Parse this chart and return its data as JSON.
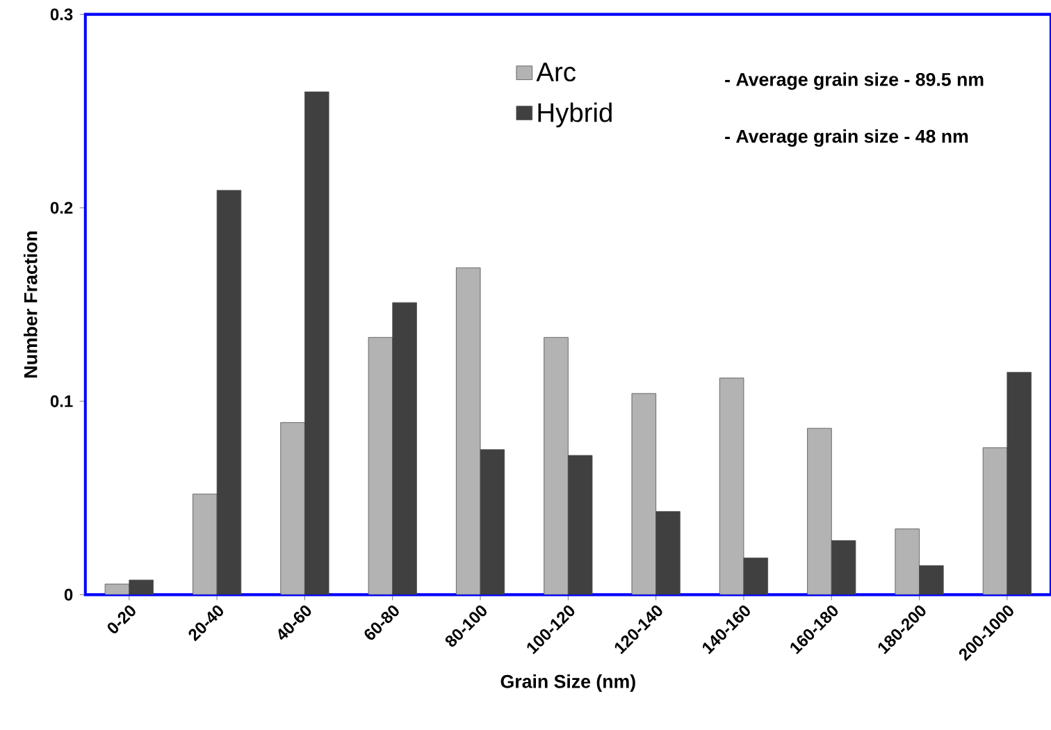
{
  "chart_data": {
    "type": "bar",
    "xlabel": "Grain Size (nm)",
    "ylabel": "Number Fraction",
    "categories": [
      "0-20",
      "20-40",
      "40-60",
      "60-80",
      "80-100",
      "100-120",
      "120-140",
      "140-160",
      "160-180",
      "180-200",
      "200-1000"
    ],
    "series": [
      {
        "name": "Arc",
        "color": "#b3b3b3",
        "values": [
          0.0055,
          0.052,
          0.089,
          0.133,
          0.169,
          0.133,
          0.104,
          0.112,
          0.086,
          0.034,
          0.076
        ]
      },
      {
        "name": "Hybrid",
        "color": "#404040",
        "values": [
          0.0076,
          0.209,
          0.26,
          0.151,
          0.075,
          0.072,
          0.043,
          0.019,
          0.028,
          0.015,
          0.115
        ]
      }
    ],
    "ylim": [
      0,
      0.3
    ],
    "yticks": [
      0,
      0.1,
      0.2,
      0.3
    ],
    "legend": "top right",
    "grid": false,
    "annotations": [
      "- Average grain size - 89.5 nm",
      "- Average grain size - 48 nm"
    ]
  }
}
